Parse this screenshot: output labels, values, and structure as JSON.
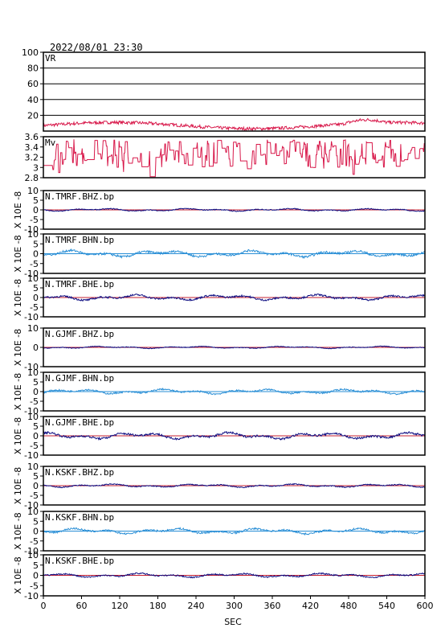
{
  "header": {
    "datetime": "2022/08/01 23:30"
  },
  "colors": {
    "vr": "#d8184a",
    "mv": "#d8184a",
    "dark": "#0a0a80",
    "light": "#2a8fd6",
    "frame": "#000000",
    "grid": "#000000"
  },
  "chart_data": {
    "type": "line",
    "x": {
      "label": "SEC",
      "min": 0,
      "max": 600,
      "ticks": [
        0,
        60,
        120,
        180,
        240,
        300,
        360,
        420,
        480,
        540,
        600
      ]
    },
    "panels": [
      {
        "name": "VR",
        "yticks": [
          20,
          40,
          60,
          80,
          100
        ],
        "ylim": [
          0,
          100
        ],
        "grid": true,
        "color": "vr",
        "kind": "vr",
        "ylabel": ""
      },
      {
        "name": "Mv",
        "yticks": [
          2.8,
          3.0,
          3.2,
          3.4,
          3.6
        ],
        "ylim": [
          2.8,
          3.6
        ],
        "grid": false,
        "color": "mv",
        "kind": "mv",
        "ylabel": ""
      },
      {
        "name": "N.TMRF.BHZ.bp",
        "yticks": [
          -10,
          -5,
          0,
          5,
          10
        ],
        "ylim": [
          -10,
          10
        ],
        "color": "dark",
        "kind": "trace",
        "amp": 0.5,
        "ylabel": "X 10E -8"
      },
      {
        "name": "N.TMRF.BHN.bp",
        "yticks": [
          -10,
          -5,
          0,
          5,
          10
        ],
        "ylim": [
          -10,
          10
        ],
        "color": "light",
        "kind": "trace",
        "amp": 1.2,
        "ylabel": "X 10E -8"
      },
      {
        "name": "N.TMRF.BHE.bp",
        "yticks": [
          -10,
          -5,
          0,
          5,
          10
        ],
        "ylim": [
          -10,
          10
        ],
        "color": "dark",
        "kind": "trace",
        "amp": 1.0,
        "ylabel": "X 10E -8"
      },
      {
        "name": "N.GJMF.BHZ.bp",
        "yticks": [
          -10,
          0,
          10
        ],
        "ylim": [
          -10,
          10
        ],
        "color": "dark",
        "kind": "trace",
        "amp": 0.4,
        "ylabel": "X 10E -8"
      },
      {
        "name": "N.GJMF.BHN.bp",
        "yticks": [
          -10,
          -5,
          0,
          5,
          10
        ],
        "ylim": [
          -10,
          10
        ],
        "color": "light",
        "kind": "trace",
        "amp": 0.9,
        "ylabel": "X 10E -8"
      },
      {
        "name": "N.GJMF.BHE.bp",
        "yticks": [
          -10,
          -5,
          0,
          5,
          10
        ],
        "ylim": [
          -10,
          10
        ],
        "color": "dark",
        "kind": "trace",
        "amp": 1.2,
        "ylabel": "X 10E -8"
      },
      {
        "name": "N.KSKF.BHZ.bp",
        "yticks": [
          -10,
          -5,
          0,
          5,
          10
        ],
        "ylim": [
          -10,
          10
        ],
        "color": "dark",
        "kind": "trace",
        "amp": 0.6,
        "ylabel": "X 10E -8"
      },
      {
        "name": "N.KSKF.BHN.bp",
        "yticks": [
          -10,
          -5,
          0,
          5,
          10
        ],
        "ylim": [
          -10,
          10
        ],
        "color": "light",
        "kind": "trace",
        "amp": 1.0,
        "ylabel": "X 10E -8"
      },
      {
        "name": "N.KSKF.BHE.bp",
        "yticks": [
          -10,
          -5,
          0,
          5,
          10
        ],
        "ylim": [
          -10,
          10
        ],
        "color": "dark",
        "kind": "trace",
        "amp": 0.7,
        "ylabel": "X 10E -8"
      }
    ]
  }
}
